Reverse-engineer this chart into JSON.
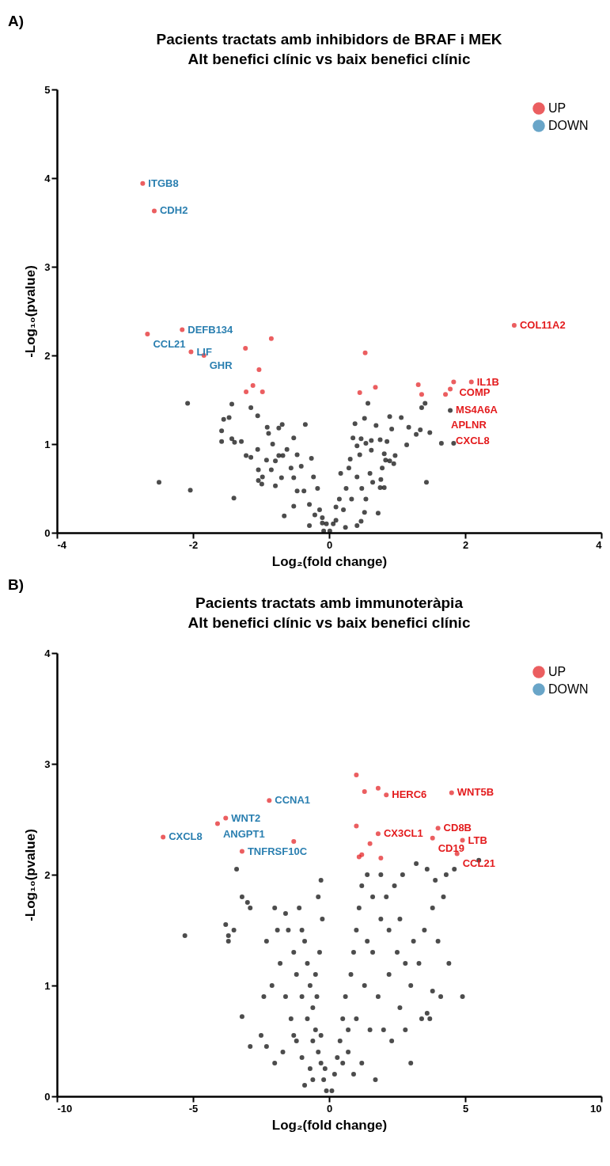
{
  "chart_data": [
    {
      "type": "scatter",
      "title": "Pacients tractats amb inhibidors de BRAF i MEK",
      "subtitle": "Alt benefici clínic vs baix benefici clínic",
      "xlabel": "Log₂(fold change)",
      "ylabel": "-Log₁₀(pvalue)",
      "xlim": [
        -4,
        4
      ],
      "ylim": [
        0,
        5
      ],
      "xticks": [
        -4,
        -2,
        0,
        2,
        4
      ],
      "yticks": [
        0,
        1,
        2,
        3,
        4,
        5
      ],
      "legend": "top right",
      "marker": "circle",
      "series": [
        {
          "name": "UP",
          "color": "#e31a1c",
          "x": [
            -2.74,
            -2.57,
            -2.16,
            -2.67,
            -2.03,
            -1.84,
            -1.23,
            -0.85,
            -1.03,
            -1.12,
            -1.22,
            -0.98,
            2.72,
            0.53,
            0.45,
            0.68,
            1.31,
            1.36,
            1.71,
            1.78,
            1.83,
            2.09
          ],
          "values": [
            3.94,
            3.63,
            2.29,
            2.24,
            2.04,
            2.0,
            2.08,
            2.19,
            1.84,
            1.66,
            1.59,
            1.59,
            2.34,
            2.03,
            1.58,
            1.64,
            1.67,
            1.56,
            1.56,
            1.62,
            1.7,
            1.7
          ]
        },
        {
          "name": "DOWN",
          "color": "#2a7fb0"
        },
        {
          "color": "#000000",
          "x": [
            -2.08,
            -2.5,
            -2.04,
            -1.43,
            -1.55,
            -1.47,
            -1.58,
            -1.58,
            -1.43,
            -1.39,
            -1.29,
            -1.4,
            -1.15,
            -1.05,
            -1.22,
            -1.15,
            -1.05,
            -0.91,
            -0.89,
            -0.69,
            -0.74,
            -0.35,
            -0.52,
            -1.04,
            -1.04,
            -0.99,
            -0.98,
            -0.85,
            -0.92,
            -0.83,
            -0.79,
            -0.74,
            -0.68,
            -0.62,
            -0.66,
            -0.79,
            -0.7,
            -0.56,
            -0.47,
            -0.41,
            -0.26,
            -0.23,
            -0.52,
            -0.47,
            -0.52,
            -0.37,
            -0.29,
            -0.17,
            -0.21,
            -0.14,
            -0.1,
            -0.29,
            -0.08,
            0.57,
            0.52,
            0.38,
            0.69,
            0.89,
            1.06,
            0.92,
            1.17,
            1.34,
            1.28,
            1.48,
            1.65,
            1.14,
            1.41,
            1.36,
            1.43,
            0.35,
            0.47,
            0.54,
            0.62,
            0.75,
            0.85,
            0.41,
            0.62,
            0.81,
            0.97,
            0.31,
            0.45,
            0.83,
            0.89,
            0.95,
            0.78,
            0.6,
            0.64,
            0.76,
            0.17,
            0.29,
            0.41,
            0.75,
            0.81,
            0.72,
            0.52,
            0.47,
            0.41,
            0.24,
            0.48,
            0.54,
            0.33,
            0.21,
            0.1,
            0.15,
            0.25,
            0.1,
            -0.1,
            -0.04,
            0.06,
            0.01,
            1.78,
            1.83
          ],
          "values": [
            1.46,
            0.57,
            0.48,
            1.45,
            1.28,
            1.3,
            1.15,
            1.03,
            1.06,
            1.02,
            1.03,
            0.39,
            1.41,
            1.32,
            0.87,
            0.85,
            0.94,
            1.19,
            1.12,
            1.22,
            1.18,
            1.22,
            1.07,
            0.71,
            0.59,
            0.55,
            0.63,
            0.71,
            0.82,
            1.0,
            0.81,
            0.87,
            0.87,
            0.94,
            0.19,
            0.53,
            0.62,
            0.73,
            0.88,
            0.75,
            0.84,
            0.63,
            0.62,
            0.47,
            0.3,
            0.47,
            0.32,
            0.5,
            0.2,
            0.26,
            0.11,
            0.08,
            0.02,
            1.46,
            1.29,
            1.23,
            1.21,
            1.31,
            1.3,
            1.17,
            1.19,
            1.16,
            1.11,
            1.13,
            1.01,
            0.99,
            1.46,
            1.41,
            0.57,
            1.07,
            1.06,
            1.01,
            1.04,
            1.05,
            1.03,
            0.98,
            0.93,
            0.89,
            0.87,
            0.83,
            0.88,
            0.82,
            0.81,
            0.78,
            0.73,
            0.67,
            0.57,
            0.6,
            0.67,
            0.73,
            0.63,
            0.51,
            0.51,
            0.22,
            0.23,
            0.13,
            0.08,
            0.06,
            0.5,
            0.38,
            0.38,
            0.26,
            0.14,
            0.38,
            0.5,
            0.29,
            0.17,
            0.1,
            0.1,
            0.02,
            1.38,
            1.01
          ]
        }
      ],
      "annotations": [
        "A)",
        {
          "text": "ITGB8",
          "x": -2.74,
          "y": 3.94
        },
        {
          "text": "CDH2",
          "x": -2.57,
          "y": 3.63
        },
        {
          "text": "DEFB134",
          "x": -2.16,
          "y": 2.29
        },
        {
          "text": "CCL21",
          "x": -2.67,
          "y": 2.24
        },
        {
          "text": "LIF",
          "x": -2.03,
          "y": 2.04
        },
        {
          "text": "GHR",
          "x": -1.84,
          "y": 2.0
        },
        {
          "text": "COL11A2",
          "x": 2.72,
          "y": 2.34
        },
        {
          "text": "IL1B",
          "x": 2.09,
          "y": 1.7
        },
        {
          "text": "COMP",
          "x": 1.83,
          "y": 1.7
        },
        {
          "text": "MS4A6A",
          "x": 1.78,
          "y": 1.62
        },
        {
          "text": "APLNR",
          "x": 1.71,
          "y": 1.56
        },
        {
          "text": "CXCL8",
          "x": 1.78,
          "y": 1.38
        }
      ]
    },
    {
      "type": "scatter",
      "title": "Pacients tractats amb immunoteràpia",
      "subtitle": "Alt benefici clínic vs baix benefici clínic",
      "xlabel": "Log₂(fold change)",
      "ylabel": "-Log₁₀(pvalue)",
      "xlim": [
        -10,
        10
      ],
      "ylim": [
        0,
        4
      ],
      "xticks": [
        -10,
        -5,
        0,
        5,
        10
      ],
      "yticks": [
        0,
        1,
        2,
        3,
        4
      ],
      "legend": "top right",
      "marker": "circle",
      "series": [
        {
          "name": "UP",
          "color": "#e31a1c",
          "x": [
            -6.1,
            -3.8,
            -4.1,
            -2.2,
            -3.2,
            -1.3,
            1.0,
            1.3,
            1.8,
            2.1,
            4.5,
            1.0,
            1.8,
            1.5,
            1.2,
            1.1,
            1.9,
            4.0,
            3.8,
            4.9,
            4.7
          ],
          "values": [
            2.34,
            2.51,
            2.46,
            2.67,
            2.21,
            2.3,
            2.9,
            2.75,
            2.78,
            2.72,
            2.74,
            2.44,
            2.37,
            2.28,
            2.18,
            2.16,
            2.15,
            2.42,
            2.33,
            2.31,
            2.19
          ]
        },
        {
          "name": "DOWN",
          "color": "#2a7fb0"
        },
        {
          "color": "#000000",
          "x": [
            -3.4,
            -3.2,
            -3.0,
            -2.9,
            -3.8,
            -3.7,
            -3.7,
            -3.5,
            -5.3,
            -3.2,
            -2.5,
            -2.9,
            -2.3,
            -2.0,
            -1.3,
            -0.1,
            -0.2,
            -0.3,
            -0.15,
            -0.4,
            -0.5,
            -0.3,
            -0.6,
            -0.7,
            -0.45,
            -0.8,
            -0.9,
            -1.0,
            -1.1,
            -0.35,
            -0.25,
            -0.5,
            -0.6,
            -0.8,
            -1.0,
            -1.2,
            -1.3,
            -1.5,
            -1.6,
            -1.9,
            -2.0,
            -1.8,
            -1.6,
            -1.4,
            -1.2,
            -1.0,
            -0.7,
            -0.4,
            -0.3,
            -2.3,
            -2.1,
            -1.7,
            -2.4,
            -0.9,
            -0.6,
            0.1,
            0.2,
            0.3,
            0.4,
            0.5,
            0.6,
            0.8,
            0.9,
            1.0,
            1.1,
            1.2,
            1.4,
            0.7,
            1.0,
            1.3,
            1.6,
            1.9,
            2.1,
            2.4,
            2.7,
            3.2,
            3.6,
            3.9,
            4.3,
            4.6,
            4.2,
            3.8,
            3.5,
            3.1,
            2.8,
            2.5,
            2.2,
            1.8,
            1.5,
            1.2,
            0.9,
            2.0,
            2.6,
            3.0,
            3.3,
            4.0,
            4.4,
            4.1,
            3.4,
            2.8,
            2.3,
            3.0,
            1.6,
            1.9,
            2.2,
            0.5,
            0.7,
            1.4,
            5.5,
            4.9,
            3.6,
            3.8,
            3.7,
            1.7,
            2.6
          ],
          "values": [
            2.05,
            1.8,
            1.75,
            1.7,
            1.55,
            1.45,
            1.4,
            1.5,
            1.45,
            0.72,
            0.55,
            0.45,
            0.45,
            0.3,
            0.55,
            0.05,
            0.15,
            0.3,
            0.25,
            0.4,
            0.6,
            0.55,
            0.8,
            1.0,
            0.9,
            1.2,
            1.4,
            1.5,
            1.7,
            1.3,
            1.6,
            1.1,
            0.5,
            0.7,
            0.9,
            1.1,
            1.3,
            1.5,
            1.65,
            1.5,
            1.7,
            1.2,
            0.9,
            0.7,
            0.5,
            0.35,
            0.25,
            1.8,
            1.95,
            1.4,
            1.0,
            0.4,
            0.9,
            0.1,
            0.15,
            0.05,
            0.2,
            0.35,
            0.5,
            0.7,
            0.9,
            1.1,
            1.3,
            1.5,
            1.7,
            1.9,
            2.0,
            0.4,
            0.7,
            1.0,
            1.3,
            1.6,
            1.8,
            1.9,
            2.0,
            2.1,
            2.05,
            1.95,
            2.0,
            2.05,
            1.8,
            1.7,
            1.5,
            1.4,
            1.2,
            1.3,
            1.1,
            0.9,
            0.6,
            0.3,
            0.2,
            0.6,
            0.8,
            1.0,
            1.2,
            1.4,
            1.2,
            0.9,
            0.7,
            0.6,
            0.5,
            0.3,
            1.8,
            2.0,
            1.5,
            0.3,
            0.6,
            1.4,
            2.13,
            0.9,
            0.75,
            0.95,
            0.7,
            0.15,
            1.6
          ]
        }
      ],
      "annotations": [
        "B)",
        {
          "text": "CXCL8",
          "x": -6.1,
          "y": 2.34
        },
        {
          "text": "WNT2",
          "x": -3.8,
          "y": 2.51
        },
        {
          "text": "ANGPT1",
          "x": -4.1,
          "y": 2.46
        },
        {
          "text": "CCNA1",
          "x": -2.2,
          "y": 2.67
        },
        {
          "text": "TNFRSF10C",
          "x": -3.2,
          "y": 2.21
        },
        {
          "text": "HERC6",
          "x": 2.1,
          "y": 2.72
        },
        {
          "text": "WNT5B",
          "x": 4.5,
          "y": 2.74
        },
        {
          "text": "CX3CL1",
          "x": 1.8,
          "y": 2.37
        },
        {
          "text": "CD8B",
          "x": 4.0,
          "y": 2.42
        },
        {
          "text": "CD19",
          "x": 3.8,
          "y": 2.33
        },
        {
          "text": "LTB",
          "x": 4.9,
          "y": 2.31
        },
        {
          "text": "CCL21",
          "x": 4.7,
          "y": 2.19
        }
      ]
    }
  ]
}
